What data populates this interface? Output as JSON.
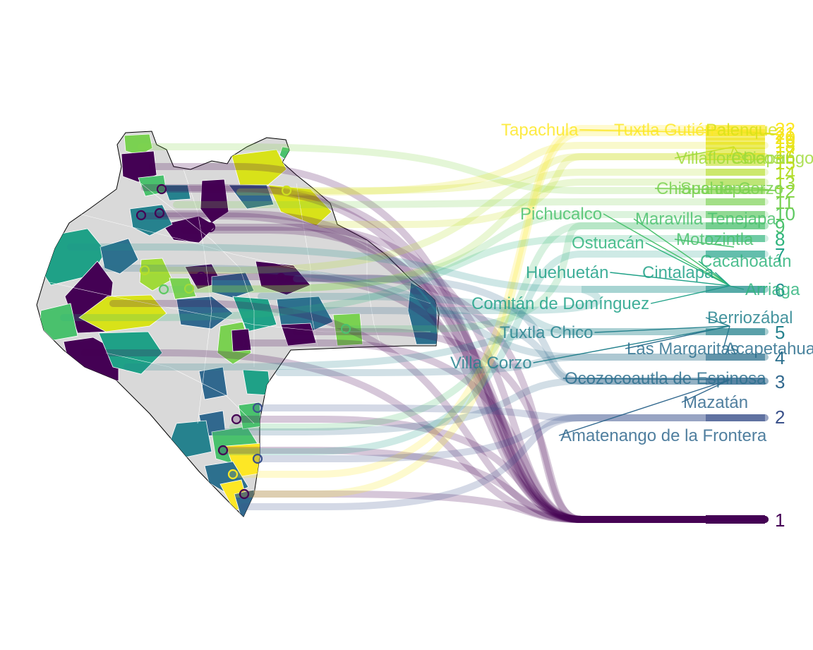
{
  "colors": {
    "background": "#ffffff",
    "map_fill": "#d9d9d9",
    "map_border": "#ffffff",
    "state_outline": "#000000",
    "palette": "viridis"
  },
  "chart_data": {
    "type": "map",
    "description_source": "choropleth of Chiapas municipalities with flow lines to ranked outcome labels",
    "ranks": [
      "1",
      "2",
      "3",
      "4",
      "5",
      "6",
      "7",
      "8",
      "9",
      "10",
      "11",
      "12",
      "13",
      "14",
      "15",
      "16",
      "17",
      "18",
      "19",
      "20",
      "21",
      "22"
    ],
    "labels": [
      {
        "text": "Tapachula",
        "color": "#fde725"
      },
      {
        "text": "Tuxtla Gutiérrez",
        "color": "#fde725"
      },
      {
        "text": "Palenque",
        "color": "#d8e219"
      },
      {
        "text": "Villaflores",
        "color": "#a0da39"
      },
      {
        "text": "Chiapa",
        "color": "#a0da39"
      },
      {
        "text": "Ocosingo",
        "color": "#a0da39"
      },
      {
        "text": "Suchiapa",
        "color": "#7ad151"
      },
      {
        "text": "Chiapa de Corzo",
        "color": "#7ad151"
      },
      {
        "text": "Pichucalco",
        "color": "#4ac16d"
      },
      {
        "text": "Maravilla Tenejapa",
        "color": "#4ac16d"
      },
      {
        "text": "Motozintla",
        "color": "#4ac16d"
      },
      {
        "text": "Ostuacán",
        "color": "#2fb47c"
      },
      {
        "text": "Cacahoatán",
        "color": "#2fb47c"
      },
      {
        "text": "Huehuetán",
        "color": "#1fa187"
      },
      {
        "text": "Cintalapa",
        "color": "#1fa187"
      },
      {
        "text": "Arriaga",
        "color": "#2fb47c"
      },
      {
        "text": "Comitán de Domínguez",
        "color": "#1fa187"
      },
      {
        "text": "Berriozábal",
        "color": "#26828e"
      },
      {
        "text": "Tuxtla Chico",
        "color": "#26828e"
      },
      {
        "text": "Las Margaritas",
        "color": "#2d708e"
      },
      {
        "text": "Acapetahua",
        "color": "#2d708e"
      },
      {
        "text": "Villa Corzo",
        "color": "#26828e"
      },
      {
        "text": "Ocozocoautla de Espinosa",
        "color": "#2d708e"
      },
      {
        "text": "Mazatán",
        "color": "#31688e"
      },
      {
        "text": "Amatenango de la Frontera",
        "color": "#31688e"
      }
    ]
  }
}
